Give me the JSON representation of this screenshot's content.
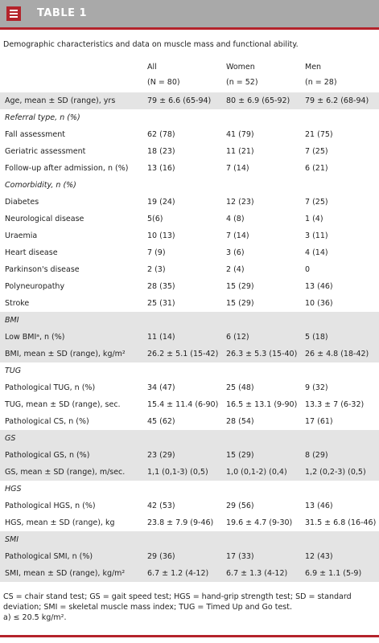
{
  "header": {
    "title": "TABLE 1"
  },
  "caption": "Demographic characteristics and data on muscle mass and functional ability.",
  "table": {
    "columns": [
      {
        "name": "All",
        "n": "(N = 80)"
      },
      {
        "name": "Women",
        "n": "(n = 52)"
      },
      {
        "name": "Men",
        "n": "(n = 28)"
      }
    ],
    "groups": [
      {
        "shaded": true,
        "rows": [
          [
            "Age, mean ± SD (range), yrs",
            "79 ± 6.6 (65-94)",
            "80 ± 6.9 (65-92)",
            "79 ± 6.2 (68-94)"
          ]
        ]
      },
      {
        "shaded": false,
        "title": "Referral type, n (%)",
        "rows": [
          [
            "Fall assessment",
            "62 (78)",
            "41 (79)",
            "21 (75)"
          ],
          [
            "Geriatric assessment",
            "18 (23)",
            "11 (21)",
            "7 (25)"
          ],
          [
            "Follow-up after admission, n (%)",
            "13 (16)",
            "7 (14)",
            "6 (21)"
          ]
        ]
      },
      {
        "shaded": false,
        "title": "Comorbidity, n (%)",
        "rows": [
          [
            "Diabetes",
            "19 (24)",
            "12 (23)",
            "7 (25)"
          ],
          [
            "Neurological disease",
            "5(6)",
            "4 (8)",
            "1 (4)"
          ],
          [
            "Uraemia",
            "10 (13)",
            "7 (14)",
            "3 (11)"
          ],
          [
            "Heart disease",
            "7 (9)",
            "3 (6)",
            "4 (14)"
          ],
          [
            "Parkinson's disease",
            "2 (3)",
            "2 (4)",
            "0"
          ],
          [
            "Polyneuropathy",
            "28 (35)",
            "15 (29)",
            "13 (46)"
          ],
          [
            "Stroke",
            "25 (31)",
            "15 (29)",
            "10 (36)"
          ]
        ]
      },
      {
        "shaded": true,
        "title": "BMI",
        "rows": [
          [
            "Low BMIᵃ, n (%)",
            "11 (14)",
            "6 (12)",
            "5 (18)"
          ],
          [
            "BMI, mean ± SD (range), kg/m²",
            "26.2 ± 5.1 (15-42)",
            "26.3 ± 5.3 (15-40)",
            "26 ± 4.8 (18-42)"
          ]
        ]
      },
      {
        "shaded": false,
        "title": "TUG",
        "rows": [
          [
            "Pathological TUG, n (%)",
            "34 (47)",
            "25 (48)",
            "9 (32)"
          ],
          [
            "TUG, mean ± SD (range), sec.",
            "15.4 ± 11.4 (6-90)",
            "16.5 ± 13.1 (9-90)",
            "13.3 ± 7 (6-32)"
          ],
          [
            "Pathological CS, n (%)",
            "45 (62)",
            "28 (54)",
            "17 (61)"
          ]
        ]
      },
      {
        "shaded": true,
        "title": "GS",
        "rows": [
          [
            "Pathological GS, n (%)",
            "23 (29)",
            "15 (29)",
            "8 (29)"
          ],
          [
            "GS, mean ± SD (range), m/sec.",
            "1,1 (0,1-3) (0,5)",
            "1,0 (0,1-2) (0,4)",
            "1,2 (0,2-3) (0,5)"
          ]
        ]
      },
      {
        "shaded": false,
        "title": "HGS",
        "rows": [
          [
            "Pathological HGS, n (%)",
            "42 (53)",
            "29 (56)",
            "13 (46)"
          ],
          [
            "HGS, mean ± SD (range), kg",
            "23.8 ± 7.9 (9-46)",
            "19.6 ± 4.7 (9-30)",
            "31.5 ± 6.8 (16-46)"
          ]
        ]
      },
      {
        "shaded": true,
        "title": "SMI",
        "rows": [
          [
            "Pathological SMI, n (%)",
            "29 (36)",
            "17 (33)",
            "12 (43)"
          ],
          [
            "SMI, mean ± SD (range), kg/m²",
            "6.7 ± 1.2 (4-12)",
            "6.7 ± 1.3 (4-12)",
            "6.9 ± 1.1 (5-9)"
          ]
        ]
      }
    ]
  },
  "footnotes": [
    "CS = chair stand test; GS = gait speed test; HGS = hand-grip strength test; SD = standard deviation; SMI = skeletal muscle mass index; TUG = Timed Up and Go test.",
    "a) ≤ 20.5 kg/m²."
  ]
}
